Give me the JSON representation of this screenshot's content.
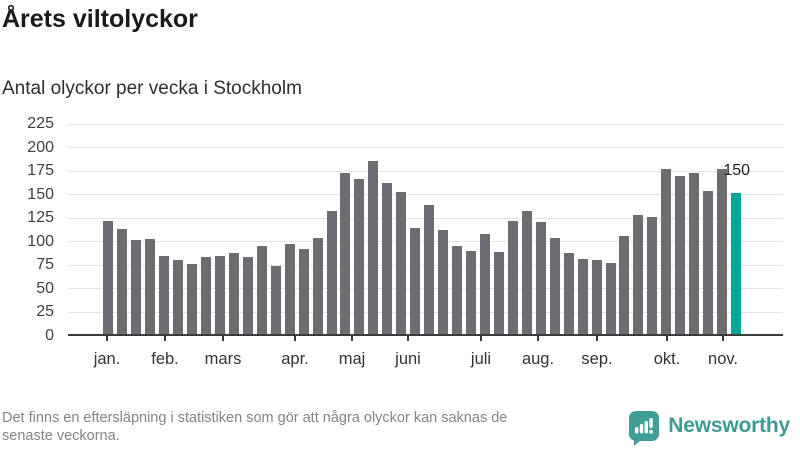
{
  "title": "Årets viltolyckor",
  "subtitle": "Antal olyckor per vecka i Stockholm",
  "footer": {
    "line1": "Det finns en eftersläpning i statistiken som gör att några olyckor kan saknas de",
    "line2": "senaste veckorna."
  },
  "logo": {
    "text": "Newsworthy",
    "icon": "newsworthy-bar-chart-bubble-icon",
    "text_color": "#3d9b92",
    "icon_color": "#3f9e95"
  },
  "chart_data": {
    "type": "bar",
    "title": "Årets viltolyckor",
    "subtitle": "Antal olyckor per vecka i Stockholm",
    "x_unit": "week",
    "ylim": [
      0,
      225
    ],
    "y_ticks": [
      0,
      25,
      50,
      75,
      100,
      125,
      150,
      175,
      200,
      225
    ],
    "grid": "horizontal",
    "legend": "none",
    "values": [
      120,
      111,
      100,
      101,
      83,
      79,
      74,
      82,
      83,
      86,
      82,
      93,
      72,
      96,
      90,
      102,
      131,
      171,
      165,
      184,
      160,
      151,
      113,
      137,
      110,
      93,
      88,
      106,
      87,
      120,
      131,
      119,
      102,
      86,
      80,
      79,
      75,
      104,
      126,
      124,
      175,
      168,
      171,
      152,
      175,
      150
    ],
    "bar_color": "#6d6d71",
    "highlight": {
      "index": 45,
      "value": 150,
      "label": "150",
      "color": "#00a79b"
    },
    "axis_color": "#3a3a3a",
    "grid_color": "#e4e4e4",
    "months": [
      {
        "label": "jan.",
        "px": 39
      },
      {
        "label": "feb.",
        "px": 97
      },
      {
        "label": "mars",
        "px": 155
      },
      {
        "label": "apr.",
        "px": 227
      },
      {
        "label": "maj",
        "px": 284
      },
      {
        "label": "juni",
        "px": 340
      },
      {
        "label": "juli",
        "px": 413
      },
      {
        "label": "aug.",
        "px": 470
      },
      {
        "label": "sep.",
        "px": 529
      },
      {
        "label": "okt.",
        "px": 599
      },
      {
        "label": "nov.",
        "px": 655
      }
    ]
  }
}
